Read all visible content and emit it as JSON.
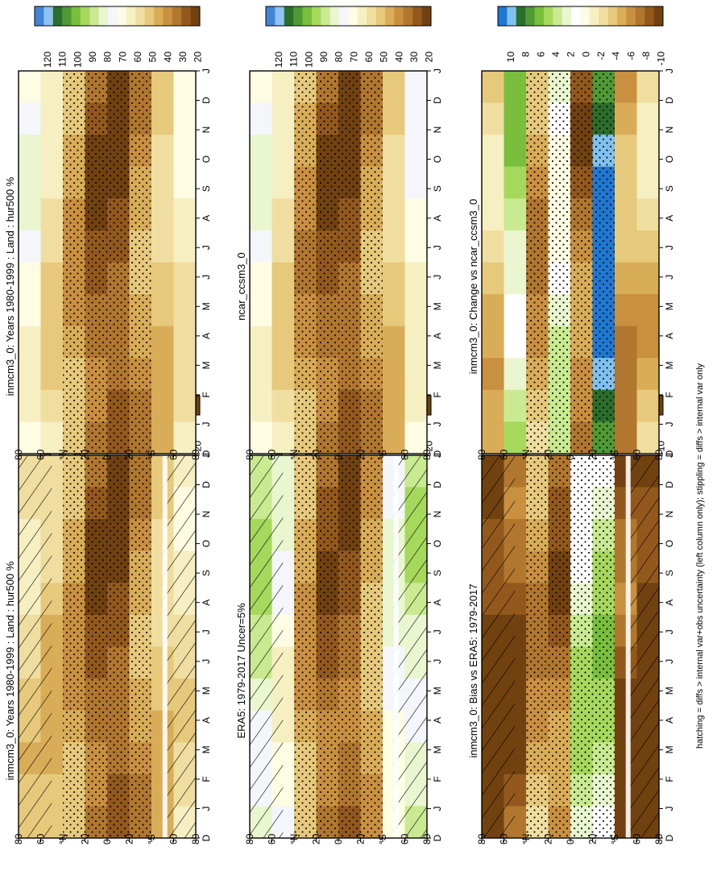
{
  "figure": {
    "footnote": "hatching = diffs > internal var+obs uncertainty (left column only); stippling = diffs > internal var only"
  },
  "colors": {
    "abs_scale": [
      "#4285d6",
      "#8fc3f0",
      "#2b6e2b",
      "#4f9a34",
      "#79bf3c",
      "#a6d85c",
      "#c9ea91",
      "#e9f6cf",
      "#f4f6fb",
      "#fffce4",
      "#f6efc2",
      "#f0dea0",
      "#e6c97b",
      "#d9ad57",
      "#c99040",
      "#b1772e",
      "#93591c",
      "#71420f"
    ],
    "diff_scale": [
      "#1f78d1",
      "#7fc1ee",
      "#2b6e2b",
      "#4f9a34",
      "#79bf3c",
      "#a6d85c",
      "#c9ea91",
      "#e9f6cf",
      "#ffffff",
      "#fffce4",
      "#f6efc2",
      "#f0dea0",
      "#e6c97b",
      "#d9ad57",
      "#c99040",
      "#b1772e",
      "#93591c",
      "#71420f"
    ]
  },
  "chart_data": [
    {
      "id": "A",
      "type": "heatmap",
      "title": "inmcm3_0: Years 1980-1999 : Land : hur500 %",
      "scale": "abs",
      "hatch": true,
      "stipple": true,
      "x_ticks": [
        "D",
        "J",
        "F",
        "M",
        "A",
        "M",
        "J",
        "J",
        "A",
        "S",
        "O",
        "N",
        "D",
        "J"
      ],
      "y_ticks": [
        "80",
        "60",
        "°N",
        "20",
        "0",
        "20",
        "°S",
        "60",
        "80"
      ],
      "colorbar_ticks": [
        "120",
        "110",
        "100",
        "90",
        "80",
        "70",
        "60",
        "50",
        "40",
        "30",
        "20"
      ],
      "bands_by_lat": [
        [
          "80N",
          "60N",
          55
        ],
        [
          "60N",
          "40N",
          50
        ],
        [
          "40N",
          "20N",
          45
        ],
        [
          "20N",
          "0",
          28
        ],
        [
          "0",
          "20S",
          26
        ],
        [
          "20S",
          "40S",
          40
        ],
        [
          "40S",
          "60S",
          50
        ],
        [
          "60S",
          "80S",
          60
        ]
      ]
    },
    {
      "id": "B",
      "type": "heatmap",
      "title": "inmcm3_0: Years 1980-1999 : Land : hur500 %",
      "scale": "abs",
      "hatch": false,
      "stipple": true,
      "x_ticks": [
        "D",
        "J",
        "F",
        "M",
        "A",
        "M",
        "J",
        "J",
        "A",
        "S",
        "O",
        "N",
        "D",
        "J"
      ],
      "y_ticks": [
        "80",
        "60",
        "°N",
        "20",
        "0",
        "20",
        "°S",
        "60",
        "80"
      ],
      "colorbar_ticks": [
        "120",
        "110",
        "100",
        "90",
        "80",
        "70",
        "60",
        "50",
        "40",
        "30",
        "20"
      ],
      "bands_by_lat": [
        [
          "80N",
          "60N",
          72
        ],
        [
          "60N",
          "40N",
          58
        ],
        [
          "40N",
          "20N",
          45
        ],
        [
          "20N",
          "0",
          28
        ],
        [
          "0",
          "20S",
          26
        ],
        [
          "20S",
          "40S",
          40
        ],
        [
          "40S",
          "60S",
          50
        ],
        [
          "60S",
          "80S",
          62
        ]
      ]
    },
    {
      "id": "C",
      "type": "heatmap",
      "title": "ERA5: 1979-2017 Uncer=5%",
      "scale": "abs",
      "hatch": true,
      "stipple": true,
      "x_ticks": [
        "D",
        "J",
        "F",
        "M",
        "A",
        "M",
        "J",
        "J",
        "A",
        "S",
        "O",
        "N",
        "D",
        "J"
      ],
      "y_ticks": [
        "80",
        "60",
        "°N",
        "20",
        "0",
        "20",
        "°S",
        "60",
        "80"
      ],
      "colorbar_ticks": [
        "120",
        "110",
        "100",
        "90",
        "80",
        "70",
        "60",
        "50",
        "40",
        "30",
        "20"
      ],
      "bands_by_lat": [
        [
          "80N",
          "60N",
          85
        ],
        [
          "60N",
          "40N",
          72
        ],
        [
          "40N",
          "20N",
          45
        ],
        [
          "20N",
          "0",
          30
        ],
        [
          "0",
          "20S",
          28
        ],
        [
          "20S",
          "40S",
          45
        ],
        [
          "40S",
          "60S",
          75
        ],
        [
          "60S",
          "80S",
          85
        ]
      ]
    },
    {
      "id": "D",
      "type": "heatmap",
      "title": "ncar_ccsm3_0",
      "scale": "abs",
      "hatch": false,
      "stipple": true,
      "x_ticks": [
        "D",
        "J",
        "F",
        "M",
        "A",
        "M",
        "J",
        "J",
        "A",
        "S",
        "O",
        "N",
        "D",
        "J"
      ],
      "y_ticks": [
        "80",
        "60",
        "°N",
        "20",
        "0",
        "20",
        "°S",
        "60",
        "80"
      ],
      "colorbar_ticks": [
        "120",
        "110",
        "100",
        "90",
        "80",
        "70",
        "60",
        "50",
        "40",
        "30",
        "20"
      ],
      "bands_by_lat": [
        [
          "80N",
          "60N",
          72
        ],
        [
          "60N",
          "40N",
          58
        ],
        [
          "40N",
          "20N",
          42
        ],
        [
          "20N",
          "0",
          28
        ],
        [
          "0",
          "20S",
          26
        ],
        [
          "20S",
          "40S",
          40
        ],
        [
          "40S",
          "60S",
          50
        ],
        [
          "60S",
          "80S",
          68
        ]
      ]
    },
    {
      "id": "E",
      "type": "heatmap",
      "title": "inmcm3_0: Bias vs ERA5: 1979-2017",
      "scale": "diff",
      "hatch": true,
      "stipple": true,
      "x_ticks": [
        "D",
        "J",
        "F",
        "M",
        "A",
        "M",
        "J",
        "J",
        "A",
        "S",
        "O",
        "N",
        "D",
        "J"
      ],
      "y_ticks": [
        "80",
        "60",
        "°N",
        "20",
        "0",
        "20",
        "°S",
        "60",
        "80"
      ],
      "colorbar_ticks": [
        "10",
        "8",
        "6",
        "4",
        "2",
        "0",
        "-2",
        "-4",
        "-6",
        "-8",
        "-10"
      ],
      "bands_by_lat": [
        [
          "80N",
          "60N",
          -12
        ],
        [
          "60N",
          "40N",
          -10
        ],
        [
          "40N",
          "20N",
          -6
        ],
        [
          "20N",
          "0",
          -8
        ],
        [
          "0",
          "20S",
          3
        ],
        [
          "20S",
          "40S",
          4
        ],
        [
          "40S",
          "60S",
          -10
        ],
        [
          "60S",
          "80S",
          -12
        ]
      ]
    },
    {
      "id": "F",
      "type": "heatmap",
      "title": "inmcm3_0: Change vs ncar_ccsm3_0",
      "scale": "diff",
      "hatch": false,
      "stipple": true,
      "x_ticks": [
        "D",
        "J",
        "F",
        "M",
        "A",
        "M",
        "J",
        "J",
        "A",
        "S",
        "O",
        "N",
        "D",
        "J"
      ],
      "y_ticks": [
        "80",
        "60",
        "°N",
        "20",
        "0",
        "20",
        "°S",
        "60",
        "80"
      ],
      "colorbar_ticks": [
        "10",
        "8",
        "6",
        "4",
        "2",
        "0",
        "-2",
        "-4",
        "-6",
        "-8",
        "-10"
      ],
      "bands_by_lat": [
        [
          "80N",
          "60N",
          -4
        ],
        [
          "60N",
          "40N",
          4
        ],
        [
          "40N",
          "20N",
          -6
        ],
        [
          "20N",
          "0",
          2
        ],
        [
          "0",
          "20S",
          -8
        ],
        [
          "20S",
          "40S",
          11
        ],
        [
          "40S",
          "60S",
          -6
        ],
        [
          "60S",
          "80S",
          -4
        ]
      ]
    }
  ]
}
